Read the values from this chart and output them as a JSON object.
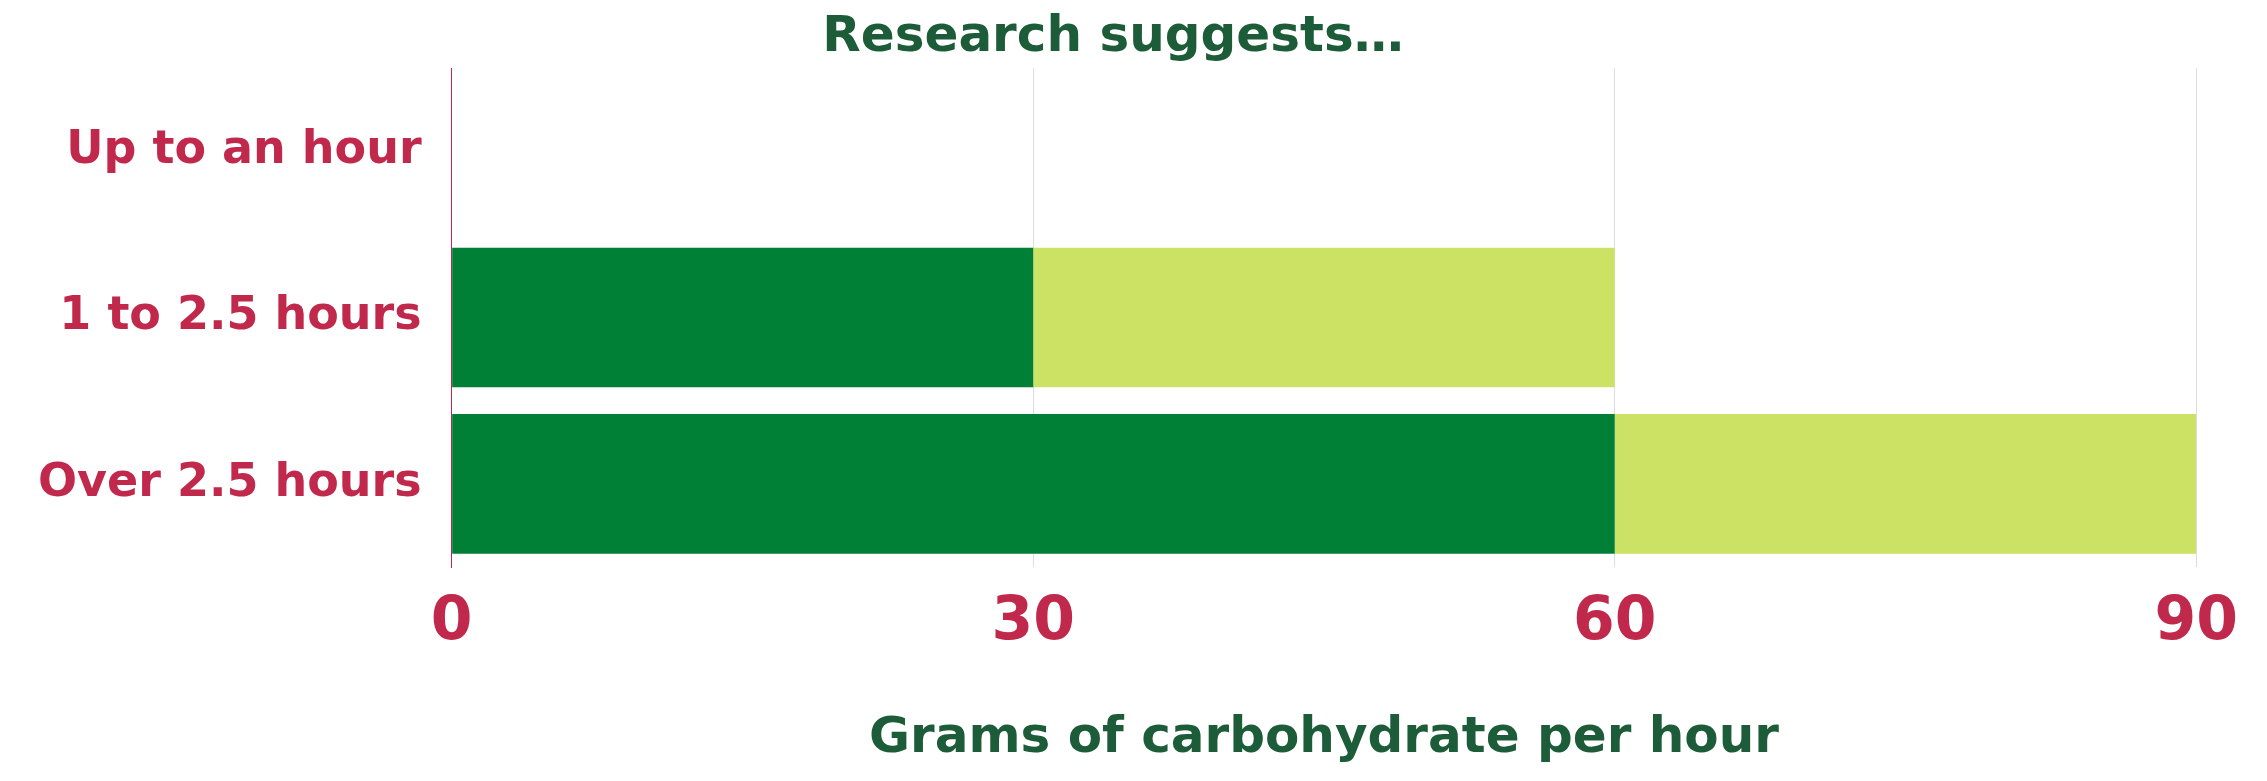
{
  "chart_data": {
    "type": "bar",
    "orientation": "horizontal",
    "stacked": true,
    "title": "Research suggests…",
    "xlabel": "Grams of carbohydrate per hour",
    "categories": [
      "Up to an hour",
      "1 to 2.5 hours",
      "Over 2.5 hours"
    ],
    "series": [
      {
        "color": "#008037",
        "values": [
          0,
          30,
          60
        ]
      },
      {
        "color": "#cbe265",
        "values": [
          0,
          30,
          30
        ]
      }
    ],
    "xlim": [
      0,
      90
    ],
    "xticks": [
      0,
      30,
      60,
      90
    ],
    "grid": "x",
    "legend": false
  }
}
